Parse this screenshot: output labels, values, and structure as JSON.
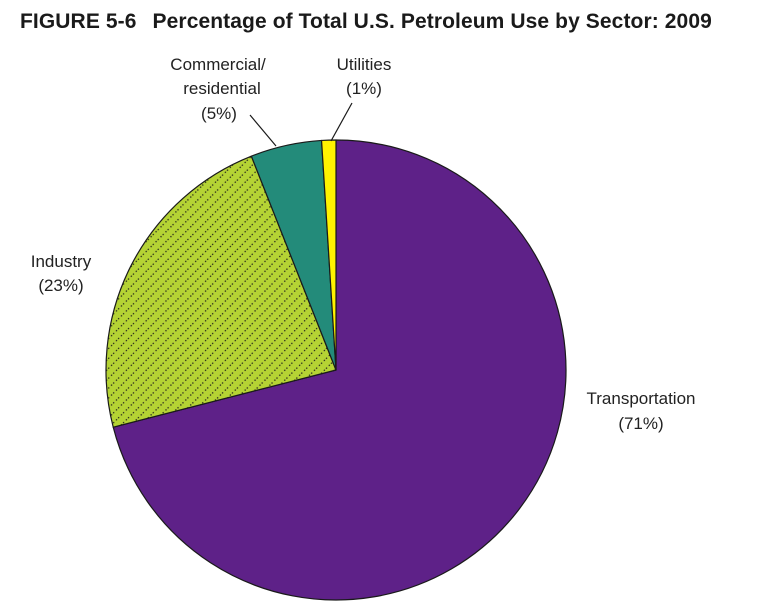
{
  "figure": {
    "number": "FIGURE 5-6",
    "title": "Percentage of Total U.S. Petroleum Use by Sector: 2009"
  },
  "chart_data": {
    "type": "pie",
    "title": "Percentage of Total U.S. Petroleum Use by Sector: 2009",
    "unit": "%",
    "slices": [
      {
        "label": "Transportation",
        "value_label": "(71%)",
        "value": 71,
        "color": "#5e2188",
        "pattern": "solid"
      },
      {
        "label": "Industry",
        "value_label": "(23%)",
        "value": 23,
        "color": "#b5d334",
        "pattern": "diagonal-dots"
      },
      {
        "label": "Commercial/ residential",
        "value_label": "(5%)",
        "value": 5,
        "color": "#238b7a",
        "pattern": "solid"
      },
      {
        "label": "Utilities",
        "value_label": "(1%)",
        "value": 1,
        "color": "#fff200",
        "pattern": "solid"
      }
    ],
    "start_angle": "12 o'clock",
    "direction": "clockwise",
    "legend": "none (direct labels)"
  }
}
